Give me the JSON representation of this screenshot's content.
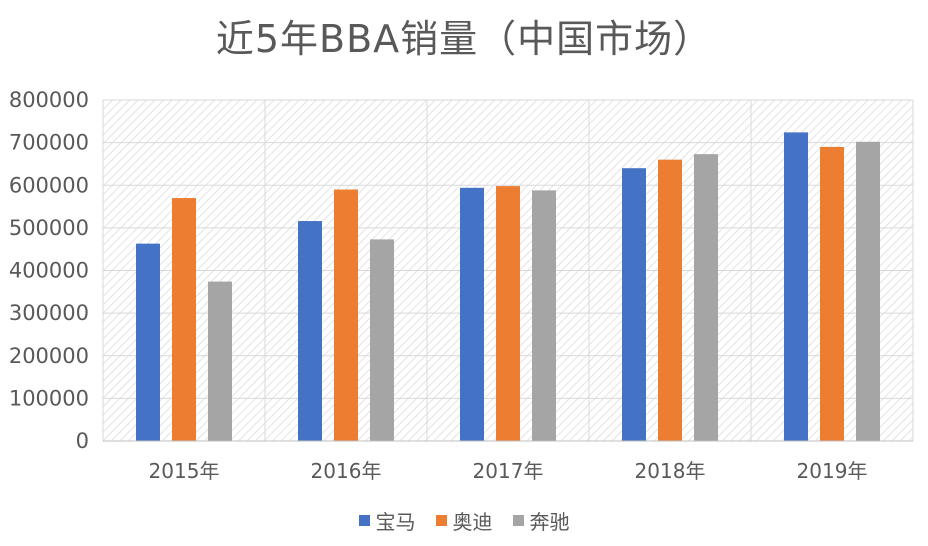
{
  "chart_data": {
    "type": "bar",
    "title": "近5年BBA销量（中国市场）",
    "categories": [
      "2015年",
      "2016年",
      "2017年",
      "2018年",
      "2019年"
    ],
    "series": [
      {
        "name": "宝马",
        "color": "#4472C4",
        "values": [
          463000,
          516000,
          594000,
          640000,
          724000
        ]
      },
      {
        "name": "奥迪",
        "color": "#ED7D31",
        "values": [
          570000,
          590000,
          598000,
          660000,
          690000
        ]
      },
      {
        "name": "奔驰",
        "color": "#A5A5A5",
        "values": [
          374000,
          473000,
          588000,
          673000,
          702000
        ]
      }
    ],
    "ylim": [
      0,
      800000
    ],
    "yticks": [
      0,
      100000,
      200000,
      300000,
      400000,
      500000,
      600000,
      700000,
      800000
    ],
    "grid": true,
    "legend_position": "bottom"
  }
}
